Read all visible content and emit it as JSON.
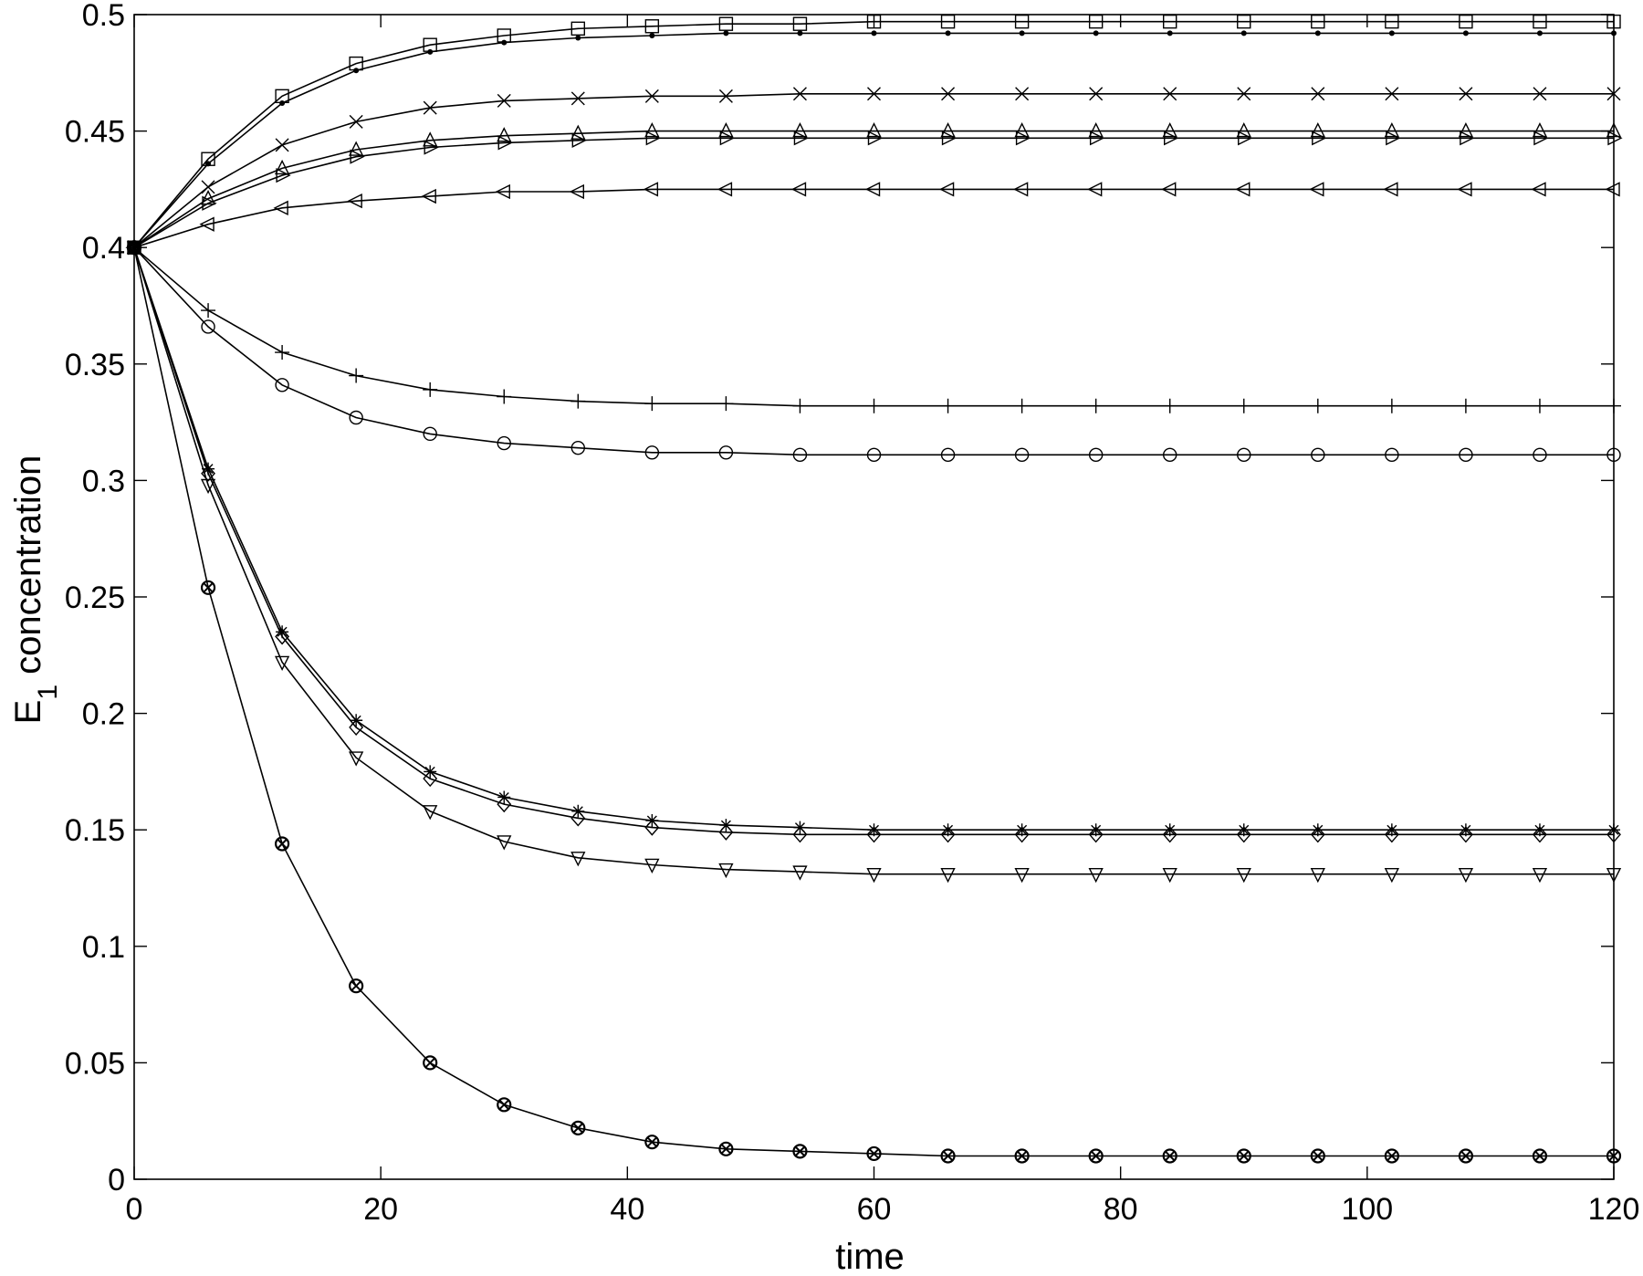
{
  "chart_data": {
    "type": "line",
    "title": "",
    "xlabel": "time",
    "ylabel": {
      "main": "E",
      "subscript": "1",
      "rest": " concentration"
    },
    "xlim": [
      0,
      120
    ],
    "ylim": [
      0,
      0.5
    ],
    "xticks": [
      0,
      20,
      40,
      60,
      80,
      100,
      120
    ],
    "yticks": [
      0,
      0.05,
      0.1,
      0.15,
      0.2,
      0.25,
      0.3,
      0.35,
      0.4,
      0.45,
      0.5
    ],
    "xtick_labels": [
      "0",
      "20",
      "40",
      "60",
      "80",
      "100",
      "120"
    ],
    "ytick_labels": [
      "0",
      "0.05",
      "0.1",
      "0.15",
      "0.2",
      "0.25",
      "0.3",
      "0.35",
      "0.4",
      "0.45",
      "0.5"
    ],
    "grid": false,
    "legend": "none",
    "line_color": "#000000",
    "x": [
      0,
      6,
      12,
      18,
      24,
      30,
      36,
      42,
      48,
      54,
      60,
      66,
      72,
      78,
      84,
      90,
      96,
      102,
      108,
      114,
      120
    ],
    "series": [
      {
        "marker": "square",
        "values": [
          0.4,
          0.438,
          0.465,
          0.479,
          0.487,
          0.491,
          0.494,
          0.495,
          0.496,
          0.496,
          0.497,
          0.497,
          0.497,
          0.497,
          0.497,
          0.497,
          0.497,
          0.497,
          0.497,
          0.497,
          0.497
        ]
      },
      {
        "marker": "dot",
        "values": [
          0.4,
          0.436,
          0.462,
          0.476,
          0.484,
          0.488,
          0.49,
          0.491,
          0.492,
          0.492,
          0.492,
          0.492,
          0.492,
          0.492,
          0.492,
          0.492,
          0.492,
          0.492,
          0.492,
          0.492,
          0.492
        ]
      },
      {
        "marker": "x",
        "values": [
          0.4,
          0.426,
          0.444,
          0.454,
          0.46,
          0.463,
          0.464,
          0.465,
          0.465,
          0.466,
          0.466,
          0.466,
          0.466,
          0.466,
          0.466,
          0.466,
          0.466,
          0.466,
          0.466,
          0.466,
          0.466
        ]
      },
      {
        "marker": "triangle-up",
        "values": [
          0.4,
          0.421,
          0.434,
          0.442,
          0.446,
          0.448,
          0.449,
          0.45,
          0.45,
          0.45,
          0.45,
          0.45,
          0.45,
          0.45,
          0.45,
          0.45,
          0.45,
          0.45,
          0.45,
          0.45,
          0.45
        ]
      },
      {
        "marker": "triangle-right",
        "values": [
          0.4,
          0.419,
          0.431,
          0.439,
          0.443,
          0.445,
          0.446,
          0.447,
          0.447,
          0.447,
          0.447,
          0.447,
          0.447,
          0.447,
          0.447,
          0.447,
          0.447,
          0.447,
          0.447,
          0.447,
          0.447
        ]
      },
      {
        "marker": "triangle-left",
        "values": [
          0.4,
          0.41,
          0.417,
          0.42,
          0.422,
          0.424,
          0.424,
          0.425,
          0.425,
          0.425,
          0.425,
          0.425,
          0.425,
          0.425,
          0.425,
          0.425,
          0.425,
          0.425,
          0.425,
          0.425,
          0.425
        ]
      },
      {
        "marker": "plus",
        "values": [
          0.4,
          0.373,
          0.355,
          0.345,
          0.339,
          0.336,
          0.334,
          0.333,
          0.333,
          0.332,
          0.332,
          0.332,
          0.332,
          0.332,
          0.332,
          0.332,
          0.332,
          0.332,
          0.332,
          0.332,
          0.332
        ]
      },
      {
        "marker": "circle",
        "values": [
          0.4,
          0.366,
          0.341,
          0.327,
          0.32,
          0.316,
          0.314,
          0.312,
          0.312,
          0.311,
          0.311,
          0.311,
          0.311,
          0.311,
          0.311,
          0.311,
          0.311,
          0.311,
          0.311,
          0.311,
          0.311
        ]
      },
      {
        "marker": "asterisk",
        "values": [
          0.4,
          0.305,
          0.235,
          0.197,
          0.175,
          0.164,
          0.158,
          0.154,
          0.152,
          0.151,
          0.15,
          0.15,
          0.15,
          0.15,
          0.15,
          0.15,
          0.15,
          0.15,
          0.15,
          0.15,
          0.15
        ]
      },
      {
        "marker": "diamond",
        "values": [
          0.4,
          0.303,
          0.233,
          0.194,
          0.172,
          0.161,
          0.155,
          0.151,
          0.149,
          0.148,
          0.148,
          0.148,
          0.148,
          0.148,
          0.148,
          0.148,
          0.148,
          0.148,
          0.148,
          0.148,
          0.148
        ]
      },
      {
        "marker": "triangle-down",
        "values": [
          0.4,
          0.298,
          0.222,
          0.181,
          0.158,
          0.145,
          0.138,
          0.135,
          0.133,
          0.132,
          0.131,
          0.131,
          0.131,
          0.131,
          0.131,
          0.131,
          0.131,
          0.131,
          0.131,
          0.131,
          0.131
        ]
      },
      {
        "marker": "circle-x",
        "values": [
          0.4,
          0.254,
          0.144,
          0.083,
          0.05,
          0.032,
          0.022,
          0.016,
          0.013,
          0.012,
          0.011,
          0.01,
          0.01,
          0.01,
          0.01,
          0.01,
          0.01,
          0.01,
          0.01,
          0.01,
          0.01
        ]
      }
    ]
  }
}
